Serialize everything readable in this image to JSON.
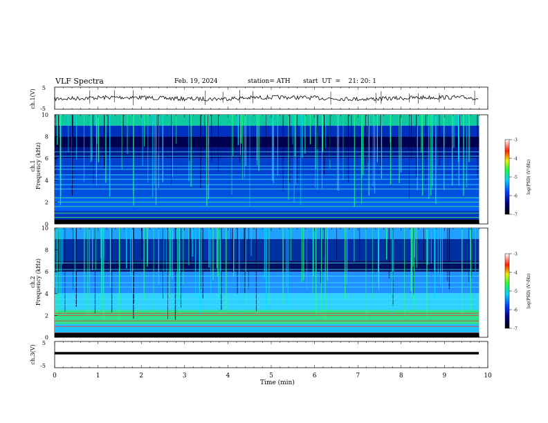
{
  "header": {
    "title": "VLF Spectra",
    "date": "Feb. 19, 2024",
    "station": "station= ATH",
    "start_ut": "start  UT  =    21: 20: 1"
  },
  "colors": {
    "voltage_trace": "#000000",
    "spectrogram_low": "#000060",
    "spectrogram_mid": "#1040ff",
    "spectrogram_high": "#ff2000"
  },
  "chart_data": [
    {
      "type": "line",
      "panel": "ch1-voltage",
      "ylabel": "ch.1(V)",
      "ylim": [
        -5,
        5
      ],
      "yticks": [
        "5",
        "-5"
      ],
      "xlim": [
        0,
        10
      ],
      "series": [
        {
          "values_summary": "noisy trace around 0 V, amplitude about ±1 V"
        }
      ]
    },
    {
      "type": "heatmap",
      "panel": "ch1-spectrogram",
      "ylabel_top": "ch.1",
      "ylabel": "Frequency (kHz)",
      "ylim": [
        0,
        10
      ],
      "yticks": [
        "0",
        "2",
        "4",
        "6",
        "8",
        "10"
      ],
      "xlim": [
        0,
        9.8
      ],
      "colorbar": {
        "label": "log(PSD) (V²/Hz)",
        "range": [
          -7,
          -3
        ],
        "ticks": [
          "-3",
          "-4",
          "-5",
          "-6",
          "-7"
        ]
      },
      "bands_khz": [
        0.3,
        0.6,
        1.0,
        1.6,
        2.0,
        2.4,
        3.2,
        3.6,
        4.1,
        4.5,
        5.0,
        5.3,
        6.2,
        6.6
      ]
    },
    {
      "type": "heatmap",
      "panel": "ch2-spectrogram",
      "ylabel_top": "ch.2",
      "ylabel": "Frequency (kHz)",
      "ylim": [
        0,
        10
      ],
      "yticks": [
        "0",
        "2",
        "4",
        "6",
        "8",
        "10"
      ],
      "xlim": [
        0,
        9.8
      ],
      "colorbar": {
        "label": "log(PSD) (V²/Hz)",
        "range": [
          -7,
          -3
        ],
        "ticks": [
          "-3",
          "-4",
          "-5",
          "-6",
          "-7"
        ]
      },
      "bands_khz": [
        0.4,
        1.0,
        1.5,
        2.0,
        2.2,
        3.0,
        3.5,
        4.0,
        4.6,
        5.0,
        5.6,
        6.2,
        6.8
      ]
    },
    {
      "type": "line",
      "panel": "ch3-voltage",
      "ylabel": "ch.3(V)",
      "ylim": [
        -5,
        5
      ],
      "yticks": [
        "5",
        "-5"
      ],
      "xlim": [
        0,
        10
      ],
      "xlabel": "Time  (min)",
      "xticks": [
        "0",
        "1",
        "2",
        "3",
        "4",
        "5",
        "6",
        "7",
        "8",
        "9",
        "10"
      ],
      "series": [
        {
          "values_summary": "flat thick trace near -2 V"
        }
      ]
    }
  ]
}
